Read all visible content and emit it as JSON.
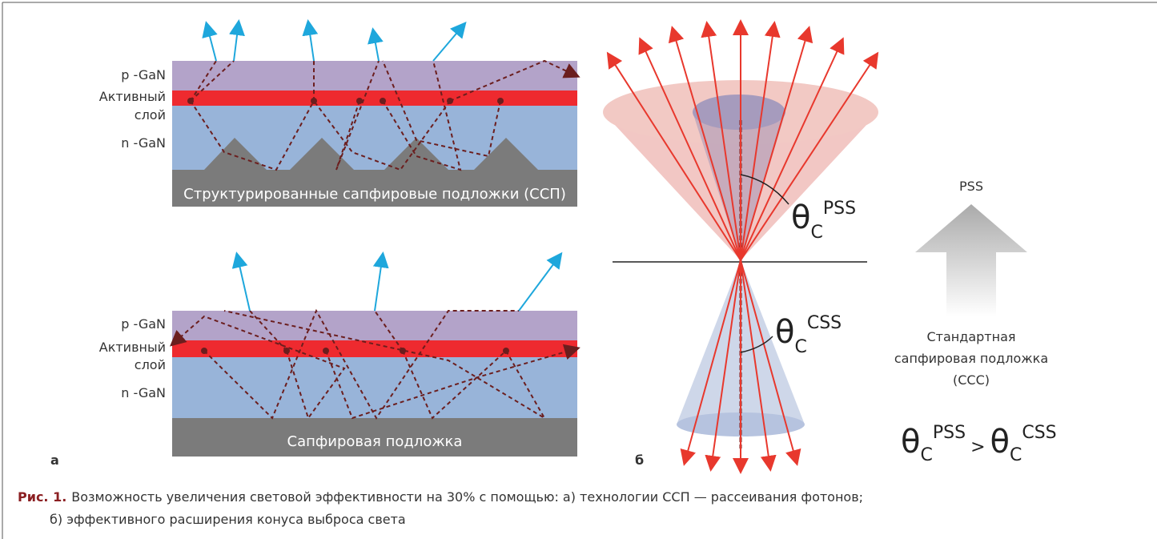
{
  "panel_a": {
    "label": "а",
    "top": {
      "p_layer": "p -GaN",
      "active_layer": [
        "Активный",
        "слой"
      ],
      "n_layer": "n -GaN",
      "substrate": "Структурированные сапфировые подложки (ССП)"
    },
    "bottom": {
      "p_layer": "p -GaN",
      "active_layer": [
        "Активный",
        "слой"
      ],
      "n_layer": "n -GaN",
      "substrate": "Сапфировая подложка"
    }
  },
  "panel_b": {
    "label": "б",
    "theta_pss": {
      "symbol": "θ",
      "subscript": "C",
      "superscript": "PSS"
    },
    "theta_css": {
      "symbol": "θ",
      "subscript": "C",
      "superscript": "CSS"
    },
    "arrow_top": "PSS",
    "arrow_bottom": [
      "Стандартная",
      "сапфировая подложка",
      "(ССС)"
    ],
    "comparison": {
      "left": {
        "symbol": "θ",
        "subscript": "C",
        "superscript": "PSS"
      },
      "operator": ">",
      "right": {
        "symbol": "θ",
        "subscript": "C",
        "superscript": "CSS"
      }
    }
  },
  "caption": {
    "prefix": "Рис. 1.",
    "lines": [
      "Возможность увеличения световой эффективности на 30% с помощью: а) технологии ССП — рассеивания фотонов;",
      "б) эффективного расширения конуса выброса света"
    ]
  }
}
